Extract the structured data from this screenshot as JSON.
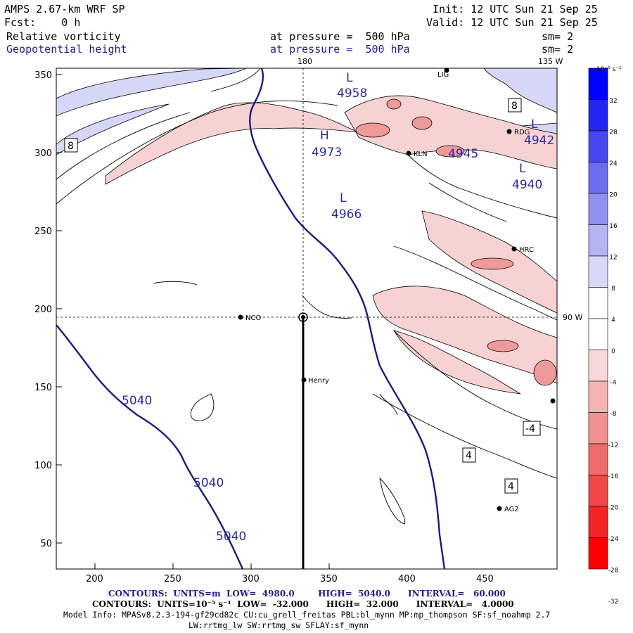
{
  "header": {
    "model": "AMPS 2.67-km WRF SP",
    "init": "Init: 12 UTC Sun 21 Sep 25",
    "fcst": "Fcst:    0 h",
    "valid": "Valid: 12 UTC Sun 21 Sep 25",
    "field1": "Relative vorticity",
    "field1_level": "at pressure =  500 hPa",
    "field1_sm": "sm= 2",
    "field2": "Geopotential height",
    "field2_level": "at pressure =  500 hPa",
    "field2_sm": "sm= 2"
  },
  "map": {
    "meridian_180": "180",
    "meridian_135w": "135 W",
    "meridian_90w": "90 W",
    "x_ticks": [
      "200",
      "250",
      "300",
      "350",
      "400",
      "450"
    ],
    "y_ticks": [
      "350",
      "300",
      "250",
      "200",
      "150",
      "100",
      "50"
    ],
    "stations": [
      "NCO",
      "Henry",
      "KLN",
      "RDG",
      "HRC",
      "AG2",
      "LIG"
    ],
    "height_labels": [
      {
        "text": "L",
        "value": "4958"
      },
      {
        "text": "H",
        "value": "4973"
      },
      {
        "text": "L",
        "value": "4966"
      },
      {
        "text": "L",
        "value": "4945"
      },
      {
        "text": "L",
        "value": "4942"
      },
      {
        "text": "L",
        "value": "4940"
      }
    ],
    "contour_5040": [
      "5040",
      "5040",
      "5040"
    ],
    "vorticity_box_labels": [
      "8",
      "8",
      "-4",
      "4",
      "4"
    ]
  },
  "colorbar": {
    "unit": "10⁻⁵ s⁻¹",
    "ticks": [
      "32",
      "28",
      "24",
      "20",
      "16",
      "12",
      "8",
      "4",
      "0",
      "-4",
      "-8",
      "-12",
      "-16",
      "-20",
      "-24",
      "-28",
      "-32"
    ],
    "colors": [
      "#0000ff",
      "#2424f5",
      "#4848f0",
      "#6c6cf0",
      "#9090f0",
      "#b4b4f2",
      "#d8d8f8",
      "#ffffff",
      "#ffffff",
      "#f8d8d8",
      "#f2b4b4",
      "#f09090",
      "#f06c6c",
      "#f04848",
      "#f52424",
      "#ff0000"
    ]
  },
  "footer": {
    "contours1": "CONTOURS:  UNITS=m  LOW=  4980.0        HIGH=  5040.0      INTERVAL=   60.000",
    "contours2": "CONTOURS:  UNITS=10⁻⁵ s⁻¹  LOW=  -32.000      HIGH=  32.000      INTERVAL=   4.0000",
    "model_info": "Model Info: MPASv8.2.3-194-gf29cd82c CU:cu_grell_freitas PBL:bl_mynn MP:mp_thompson SF:sf_noahmp 2.7",
    "model_info2": "LW:rrtmg_lw SW:rrtmg_sw SFLAY:sf_mynn"
  }
}
